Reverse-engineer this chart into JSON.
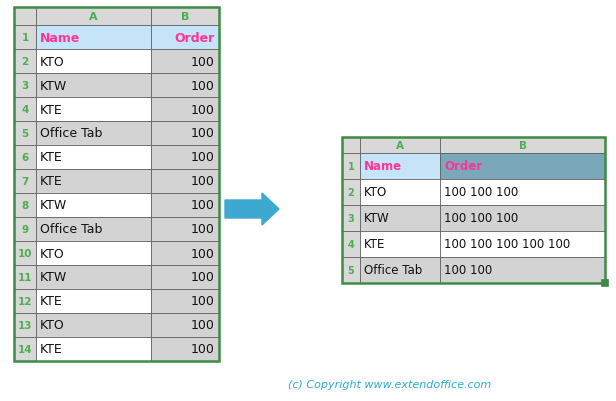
{
  "bg_color": "#ffffff",
  "copyright_text": "(c) Copyright www.extendoffice.com",
  "copyright_color": "#29ABD4",
  "arrow_color": "#3DA8D0",
  "left_table": {
    "col_headers": [
      "A",
      "B"
    ],
    "row_nums": [
      "1",
      "2",
      "3",
      "4",
      "5",
      "6",
      "7",
      "8",
      "9",
      "10",
      "11",
      "12",
      "13",
      "14"
    ],
    "header_text_color": "#FF3399",
    "col_header_color": "#4CAF50",
    "data_rows": [
      [
        "Name",
        "Order"
      ],
      [
        "KTO",
        "100"
      ],
      [
        "KTW",
        "100"
      ],
      [
        "KTE",
        "100"
      ],
      [
        "Office Tab",
        "100"
      ],
      [
        "KTE",
        "100"
      ],
      [
        "KTE",
        "100"
      ],
      [
        "KTW",
        "100"
      ],
      [
        "Office Tab",
        "100"
      ],
      [
        "KTO",
        "100"
      ],
      [
        "KTW",
        "100"
      ],
      [
        "KTE",
        "100"
      ],
      [
        "KTO",
        "100"
      ],
      [
        "KTE",
        "100"
      ]
    ],
    "header_bg": "#C5E4F7",
    "row_bg_white": "#FFFFFF",
    "row_bg_gray": "#D3D3D3",
    "border_outer": "#3D8B45",
    "border_inner": "#555555"
  },
  "right_table": {
    "col_headers": [
      "A",
      "B"
    ],
    "row_nums": [
      "1",
      "2",
      "3",
      "4",
      "5"
    ],
    "header_text_color": "#FF3399",
    "col_header_color": "#4CAF50",
    "data_rows": [
      [
        "Name",
        "Order"
      ],
      [
        "KTO",
        "100 100 100"
      ],
      [
        "KTW",
        "100 100 100"
      ],
      [
        "KTE",
        "100 100 100 100 100"
      ],
      [
        "Office Tab",
        "100 100"
      ]
    ],
    "header_bg_A": "#C5E4F7",
    "header_bg_B": "#7BA7BB",
    "row_bg_white": "#FFFFFF",
    "row_bg_gray": "#D3D3D3",
    "border_outer": "#3D8B45",
    "border_inner": "#555555"
  }
}
